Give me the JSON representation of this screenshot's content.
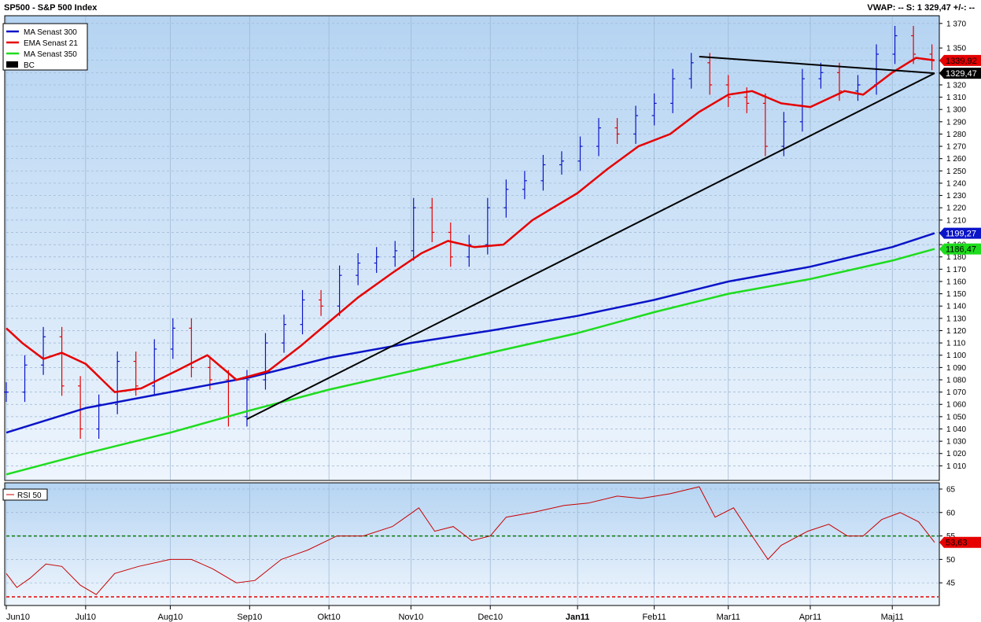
{
  "header": {
    "title": "SP500 - S&P 500 Index",
    "vwap": "VWAP: --  S: 1 329,47  +/-: --"
  },
  "chart_data": [
    {
      "type": "line",
      "panel": "price",
      "ylim": [
        1000,
        1375
      ],
      "yticks": [
        1010,
        1020,
        1030,
        1040,
        1050,
        1060,
        1070,
        1080,
        1090,
        1100,
        1110,
        1120,
        1130,
        1140,
        1150,
        1160,
        1170,
        1180,
        1190,
        1200,
        1210,
        1220,
        1230,
        1240,
        1250,
        1260,
        1270,
        1280,
        1290,
        1300,
        1310,
        1320,
        1330,
        1340,
        1350,
        1370
      ],
      "ytick_labels": [
        "1 010",
        "1 020",
        "1 030",
        "1 040",
        "1 050",
        "1 060",
        "1 070",
        "1 080",
        "1 090",
        "1 100",
        "1 110",
        "1 120",
        "1 130",
        "1 140",
        "1 150",
        "1 160",
        "1 170",
        "1 180",
        "1 190",
        "1 200",
        "1 210",
        "1 220",
        "1 230",
        "1 240",
        "1 250",
        "1 260",
        "1 270",
        "1 280",
        "1 290",
        "1 300",
        "1 310",
        "1 320",
        "1 330",
        "1 340",
        "1 350",
        "1 370"
      ],
      "xlim": [
        "2010-06-01",
        "2011-05-18"
      ],
      "x_ticks": [
        {
          "date": "2010-06-01",
          "label": "Jun10"
        },
        {
          "date": "2010-07-01",
          "label": "Jul10"
        },
        {
          "date": "2010-08-02",
          "label": "Aug10"
        },
        {
          "date": "2010-09-01",
          "label": "Sep10"
        },
        {
          "date": "2010-10-01",
          "label": "Okt10"
        },
        {
          "date": "2010-11-01",
          "label": "Nov10"
        },
        {
          "date": "2010-12-01",
          "label": "Dec10"
        },
        {
          "date": "2011-01-03",
          "label": "Jan11"
        },
        {
          "date": "2011-02-01",
          "label": "Feb11"
        },
        {
          "date": "2011-03-01",
          "label": "Mar11"
        },
        {
          "date": "2011-04-01",
          "label": "Apr11"
        },
        {
          "date": "2011-05-02",
          "label": "Maj11"
        }
      ],
      "legend": [
        {
          "name": "MA  Senast 300",
          "color": "#0a14c8"
        },
        {
          "name": "EMA  Senast 21",
          "color": "#e60000"
        },
        {
          "name": "MA  Senast 350",
          "color": "#1edc1e"
        },
        {
          "name": "BC",
          "color": "#000000"
        }
      ],
      "legend_position": "top-left",
      "price_bars": {
        "up_color": "#0a14c8",
        "down_color": "#e60000",
        "x": [
          "2010-06-01",
          "2010-06-08",
          "2010-06-15",
          "2010-06-22",
          "2010-06-29",
          "2010-07-06",
          "2010-07-13",
          "2010-07-20",
          "2010-07-27",
          "2010-08-03",
          "2010-08-10",
          "2010-08-17",
          "2010-08-24",
          "2010-08-31",
          "2010-09-07",
          "2010-09-14",
          "2010-09-21",
          "2010-09-28",
          "2010-10-05",
          "2010-10-12",
          "2010-10-19",
          "2010-10-26",
          "2010-11-02",
          "2010-11-09",
          "2010-11-16",
          "2010-11-23",
          "2010-11-30",
          "2010-12-07",
          "2010-12-14",
          "2010-12-21",
          "2010-12-28",
          "2011-01-04",
          "2011-01-11",
          "2011-01-18",
          "2011-01-25",
          "2011-02-01",
          "2011-02-08",
          "2011-02-15",
          "2011-02-22",
          "2011-03-01",
          "2011-03-08",
          "2011-03-15",
          "2011-03-22",
          "2011-03-29",
          "2011-04-05",
          "2011-04-12",
          "2011-04-19",
          "2011-04-26",
          "2011-05-03",
          "2011-05-10",
          "2011-05-17"
        ],
        "close": [
          1070,
          1092,
          1115,
          1075,
          1040,
          1060,
          1095,
          1075,
          1105,
          1122,
          1090,
          1080,
          1050,
          1080,
          1110,
          1125,
          1145,
          1140,
          1165,
          1175,
          1180,
          1185,
          1220,
          1200,
          1180,
          1190,
          1220,
          1235,
          1242,
          1255,
          1258,
          1270,
          1285,
          1280,
          1295,
          1305,
          1325,
          1338,
          1320,
          1310,
          1305,
          1270,
          1290,
          1325,
          1330,
          1315,
          1320,
          1345,
          1360,
          1345,
          1340
        ]
      },
      "series": [
        {
          "name": "MA  Senast 300",
          "color": "#0a14c8",
          "last": 1199.27,
          "last_label": "1199,27",
          "x": [
            "2010-06-01",
            "2010-07-01",
            "2010-08-02",
            "2010-09-01",
            "2010-10-01",
            "2010-11-01",
            "2010-12-01",
            "2011-01-03",
            "2011-02-01",
            "2011-03-01",
            "2011-04-01",
            "2011-05-02",
            "2011-05-18"
          ],
          "y": [
            1037,
            1057,
            1070,
            1082,
            1098,
            1110,
            1120,
            1132,
            1145,
            1160,
            1172,
            1188,
            1199.27
          ]
        },
        {
          "name": "EMA  Senast 21",
          "color": "#e60000",
          "last": 1339.92,
          "last_label": "1339,92",
          "x": [
            "2010-06-01",
            "2010-06-07",
            "2010-06-15",
            "2010-06-22",
            "2010-07-01",
            "2010-07-12",
            "2010-07-22",
            "2010-08-05",
            "2010-08-16",
            "2010-08-27",
            "2010-09-08",
            "2010-09-20",
            "2010-10-01",
            "2010-10-12",
            "2010-10-25",
            "2010-11-05",
            "2010-11-15",
            "2010-11-25",
            "2010-12-06",
            "2010-12-17",
            "2011-01-03",
            "2011-01-14",
            "2011-01-26",
            "2011-02-07",
            "2011-02-18",
            "2011-03-01",
            "2011-03-10",
            "2011-03-21",
            "2011-04-01",
            "2011-04-14",
            "2011-04-21",
            "2011-05-02",
            "2011-05-11",
            "2011-05-18"
          ],
          "y": [
            1122,
            1110,
            1097,
            1102,
            1093,
            1070,
            1073,
            1088,
            1100,
            1080,
            1087,
            1107,
            1127,
            1147,
            1167,
            1183,
            1193,
            1188,
            1190,
            1210,
            1232,
            1251,
            1270,
            1280,
            1298,
            1312,
            1315,
            1305,
            1302,
            1315,
            1312,
            1330,
            1342,
            1339.92
          ]
        },
        {
          "name": "MA  Senast 350",
          "color": "#1edc1e",
          "last": 1186.47,
          "last_label": "1186,47",
          "x": [
            "2010-06-01",
            "2010-07-01",
            "2010-08-02",
            "2010-09-01",
            "2010-10-01",
            "2010-11-01",
            "2010-12-01",
            "2011-01-03",
            "2011-02-01",
            "2011-03-01",
            "2011-04-01",
            "2011-05-02",
            "2011-05-18"
          ],
          "y": [
            1003,
            1020,
            1037,
            1055,
            1072,
            1087,
            1102,
            1118,
            1135,
            1150,
            1162,
            1177,
            1186.47
          ]
        },
        {
          "name": "BC",
          "color": "#000000",
          "last": 1329.47,
          "last_label": "1329,47",
          "x": [
            "2010-08-31",
            "2011-05-18"
          ],
          "y": [
            1048,
            1329.47
          ]
        },
        {
          "name": "BC",
          "color": "#000000",
          "x": [
            "2011-02-18",
            "2011-05-18"
          ],
          "y": [
            1343,
            1329.47
          ]
        }
      ]
    },
    {
      "type": "line",
      "panel": "indicator",
      "title": "RSI  50",
      "ylim": [
        40.5,
        66
      ],
      "yticks": [
        45,
        50,
        55,
        60,
        65
      ],
      "ytick_labels": [
        "45",
        "50",
        "55",
        "60",
        "65"
      ],
      "reference_lines": [
        {
          "y": 55,
          "color": "#0a7a0a",
          "style": "dashed"
        },
        {
          "y": 42,
          "color": "#e60000",
          "style": "dashed"
        }
      ],
      "series": [
        {
          "name": "RSI  50",
          "color": "#c80000",
          "last": 53.63,
          "last_label": "53,63",
          "x": [
            "2010-06-01",
            "2010-06-05",
            "2010-06-10",
            "2010-06-16",
            "2010-06-22",
            "2010-06-29",
            "2010-07-05",
            "2010-07-12",
            "2010-07-21",
            "2010-08-02",
            "2010-08-10",
            "2010-08-18",
            "2010-08-27",
            "2010-09-03",
            "2010-09-13",
            "2010-09-23",
            "2010-10-04",
            "2010-10-14",
            "2010-10-25",
            "2010-11-04",
            "2010-11-10",
            "2010-11-17",
            "2010-11-24",
            "2010-12-01",
            "2010-12-07",
            "2010-12-17",
            "2010-12-29",
            "2011-01-07",
            "2011-01-18",
            "2011-01-27",
            "2011-02-07",
            "2011-02-18",
            "2011-02-24",
            "2011-03-03",
            "2011-03-10",
            "2011-03-16",
            "2011-03-21",
            "2011-03-31",
            "2011-04-08",
            "2011-04-15",
            "2011-04-21",
            "2011-04-28",
            "2011-05-05",
            "2011-05-12",
            "2011-05-18"
          ],
          "y": [
            47,
            44,
            46,
            49,
            48.5,
            44.5,
            42.5,
            47,
            48.5,
            50,
            50,
            48,
            45,
            45.5,
            50,
            52,
            55,
            55,
            57,
            61,
            56,
            57,
            54,
            55,
            59,
            60,
            61.5,
            62,
            63.5,
            63,
            64,
            65.5,
            59,
            61,
            55,
            50,
            53,
            56,
            57.5,
            55,
            55,
            58.5,
            60,
            58,
            53.63
          ]
        }
      ]
    }
  ]
}
